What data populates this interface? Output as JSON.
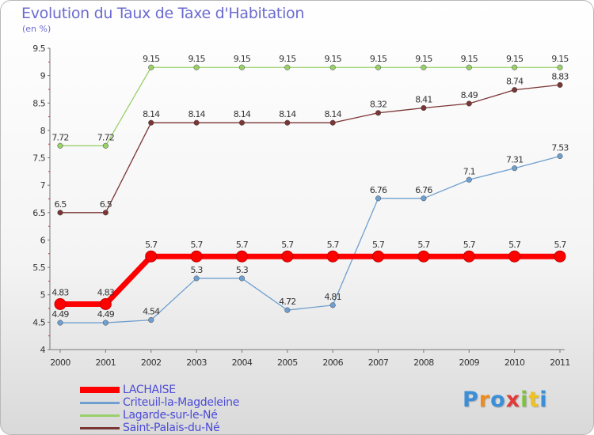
{
  "title": "Evolution du Taux de Taxe d'Habitation",
  "subtitle": "(en %)",
  "logo": {
    "letters": [
      "P",
      "r",
      "o",
      "x",
      "i",
      "t",
      "i"
    ],
    "colors": [
      "#3a8fd8",
      "#f08c1e",
      "#3a8fd8",
      "#e23a3a",
      "#7fc241",
      "#f0c21e",
      "#3a8fd8"
    ]
  },
  "chart_data": {
    "type": "line",
    "title": "Evolution du Taux de Taxe d'Habitation",
    "ylabel": "(en %)",
    "xlabel": "",
    "x": [
      "2000",
      "2001",
      "2002",
      "2003",
      "2004",
      "2005",
      "2006",
      "2007",
      "2008",
      "2009",
      "2010",
      "2011"
    ],
    "ylim": [
      4,
      9.5
    ],
    "yticks": [
      "4",
      "4.5",
      "5",
      "5.5",
      "6",
      "6.5",
      "7",
      "7.5",
      "8",
      "8.5",
      "9",
      "9.5"
    ],
    "series": [
      {
        "name": "LACHAISE",
        "color": "#ff0000",
        "values": [
          4.83,
          4.83,
          5.7,
          5.7,
          5.7,
          5.7,
          5.7,
          5.7,
          5.7,
          5.7,
          5.7,
          5.7
        ],
        "labels": [
          "4.83",
          "4.83",
          "5.7",
          "5.7",
          "5.7",
          "5.7",
          "5.7",
          "5.7",
          "5.7",
          "5.7",
          "5.7",
          "5.7"
        ]
      },
      {
        "name": "Criteuil-la-Magdeleine",
        "color": "#6f9fcf",
        "values": [
          4.49,
          4.49,
          4.54,
          5.3,
          5.3,
          4.72,
          4.81,
          6.76,
          6.76,
          7.1,
          7.31,
          7.53
        ],
        "labels": [
          "4.49",
          "4.49",
          "4.54",
          "5.3",
          "5.3",
          "4.72",
          "4.81",
          "6.76",
          "6.76",
          "7.1",
          "7.31",
          "7.53"
        ]
      },
      {
        "name": "Lagarde-sur-le-Né",
        "color": "#9ad06a",
        "values": [
          7.72,
          7.72,
          9.15,
          9.15,
          9.15,
          9.15,
          9.15,
          9.15,
          9.15,
          9.15,
          9.15,
          9.15
        ],
        "labels": [
          "7.72",
          "7.72",
          "9.15",
          "9.15",
          "9.15",
          "9.15",
          "9.15",
          "9.15",
          "9.15",
          "9.15",
          "9.15",
          "9.15"
        ]
      },
      {
        "name": "Saint-Palais-du-Né",
        "color": "#7a3535",
        "values": [
          6.5,
          6.5,
          8.14,
          8.14,
          8.14,
          8.14,
          8.14,
          8.32,
          8.41,
          8.49,
          8.74,
          8.83
        ],
        "labels": [
          "6.5",
          "6.5",
          "8.14",
          "8.14",
          "8.14",
          "8.14",
          "8.14",
          "8.32",
          "8.41",
          "8.49",
          "8.74",
          "8.83"
        ]
      }
    ],
    "grid": false,
    "legend_position": "bottom-left"
  }
}
